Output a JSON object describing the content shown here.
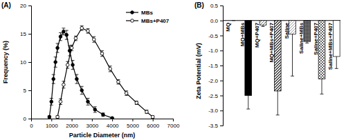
{
  "chart_data": [
    {
      "type": "line",
      "title": "(A)",
      "x_label": "Particle Diameter (nm)",
      "y_label": "Frequency (%)",
      "xlim": [
        0,
        7000
      ],
      "xticks": [
        0,
        1000,
        2000,
        3000,
        4000,
        5000,
        6000,
        7000
      ],
      "ylim": [
        0,
        20
      ],
      "yticks": [
        0,
        5,
        10,
        15,
        20
      ],
      "legend": "top-right",
      "series": [
        {
          "name": "MBs",
          "color": "#000000",
          "marker": "circle",
          "line_style": "solid",
          "x": [
            900,
            1000,
            1100,
            1200,
            1300,
            1450,
            1600,
            1750,
            1900,
            2050,
            2250,
            2500,
            2800,
            3150,
            3550,
            4000
          ],
          "values": [
            0.3,
            3,
            7,
            10,
            12.5,
            14.5,
            15.4,
            14.8,
            12,
            9.5,
            7,
            5,
            3,
            1.6,
            0.7,
            0.1
          ],
          "errors": [
            0.2,
            0.6,
            0.8,
            0.9,
            0.8,
            0.7,
            0.6,
            0.8,
            0.9,
            0.8,
            0.8,
            0.7,
            0.6,
            0.5,
            0.3,
            0.1
          ]
        },
        {
          "name": "MBs+P407",
          "color": "#000000",
          "marker": "circle-open",
          "line_style": "solid",
          "x": [
            1300,
            1450,
            1600,
            1800,
            2000,
            2200,
            2500,
            2800,
            3100,
            3500,
            3900,
            4300,
            4700,
            5200,
            5700,
            6000
          ],
          "values": [
            0.3,
            3,
            6,
            9.5,
            12.5,
            14.2,
            16,
            15.5,
            14,
            11.5,
            8.8,
            6.5,
            4.5,
            2.8,
            1.2,
            0.3
          ],
          "errors": [
            0.2,
            0.5,
            0.6,
            0.6,
            0.5,
            0.4,
            0.4,
            0.4,
            0.5,
            0.5,
            0.5,
            0.4,
            0.4,
            0.3,
            0.3,
            0.2
          ]
        }
      ]
    },
    {
      "type": "bar",
      "title": "(B)",
      "y_label": "Zeta Potential (mV)",
      "categories": [
        "MQ",
        "MQ+MBs",
        "MQ+P407",
        "MQ+MBs+P407",
        "Saline",
        "Saline+MBs",
        "Saline+P407",
        "Saline+MBs+P407"
      ],
      "values": [
        0,
        -2.5,
        -0.15,
        -2.35,
        -0.45,
        -0.7,
        -1.95,
        -1.2
      ],
      "errors": [
        0,
        0.45,
        0.05,
        0.8,
        1.4,
        0.05,
        0.5,
        0.4
      ],
      "colors": [
        "#ffffff",
        "#000000",
        "#ffffff",
        "#ffffff",
        "#ffffff",
        "#808080",
        "#ffffff",
        "#ffffff"
      ],
      "ylim": [
        -3.5,
        0.5
      ],
      "yticks": [
        -3.5,
        {
          "value": -3,
          "label": "-3.0"
        },
        -2.5,
        {
          "value": -2,
          "label": "-2.0"
        },
        -1.5,
        {
          "value": -1,
          "label": "-1.0"
        },
        -0.5,
        {
          "value": 0,
          "label": "0.0"
        },
        0.5
      ]
    }
  ]
}
